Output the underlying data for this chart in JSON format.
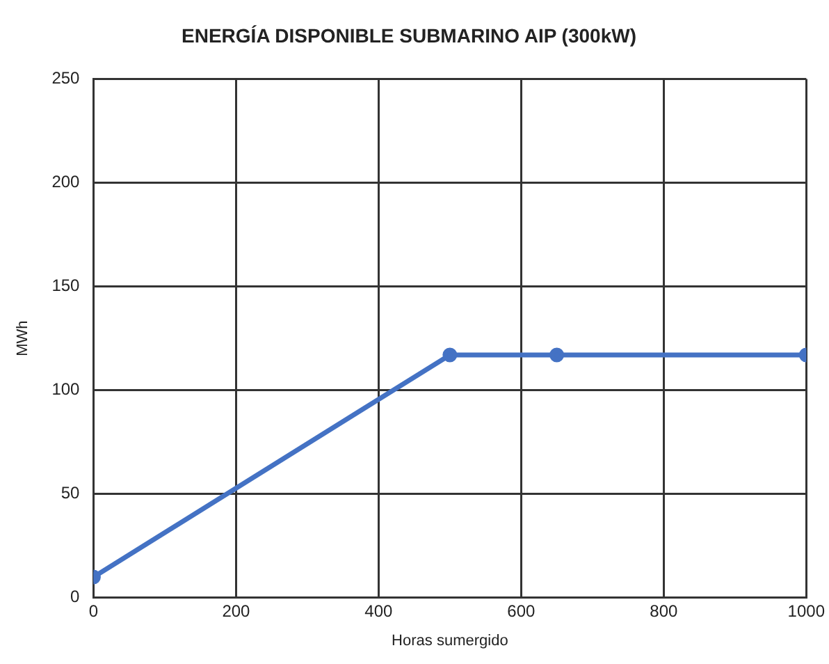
{
  "chart_data": {
    "type": "line",
    "title": "ENERGÍA DISPONIBLE SUBMARINO AIP (300kW)",
    "xlabel": "Horas sumergido",
    "ylabel": "MWh",
    "x": [
      0,
      500,
      650,
      1000
    ],
    "series": [
      {
        "color": "#4472c4",
        "values": [
          10,
          117,
          117,
          117
        ]
      }
    ],
    "xlim": [
      0,
      1000
    ],
    "xticks": [
      0,
      200,
      400,
      600,
      800,
      1000
    ],
    "ylim": [
      0,
      250
    ],
    "yticks": [
      0,
      50,
      100,
      150,
      200,
      250
    ],
    "grid": true,
    "legend": false,
    "marker": "circle",
    "line_style": "solid"
  }
}
